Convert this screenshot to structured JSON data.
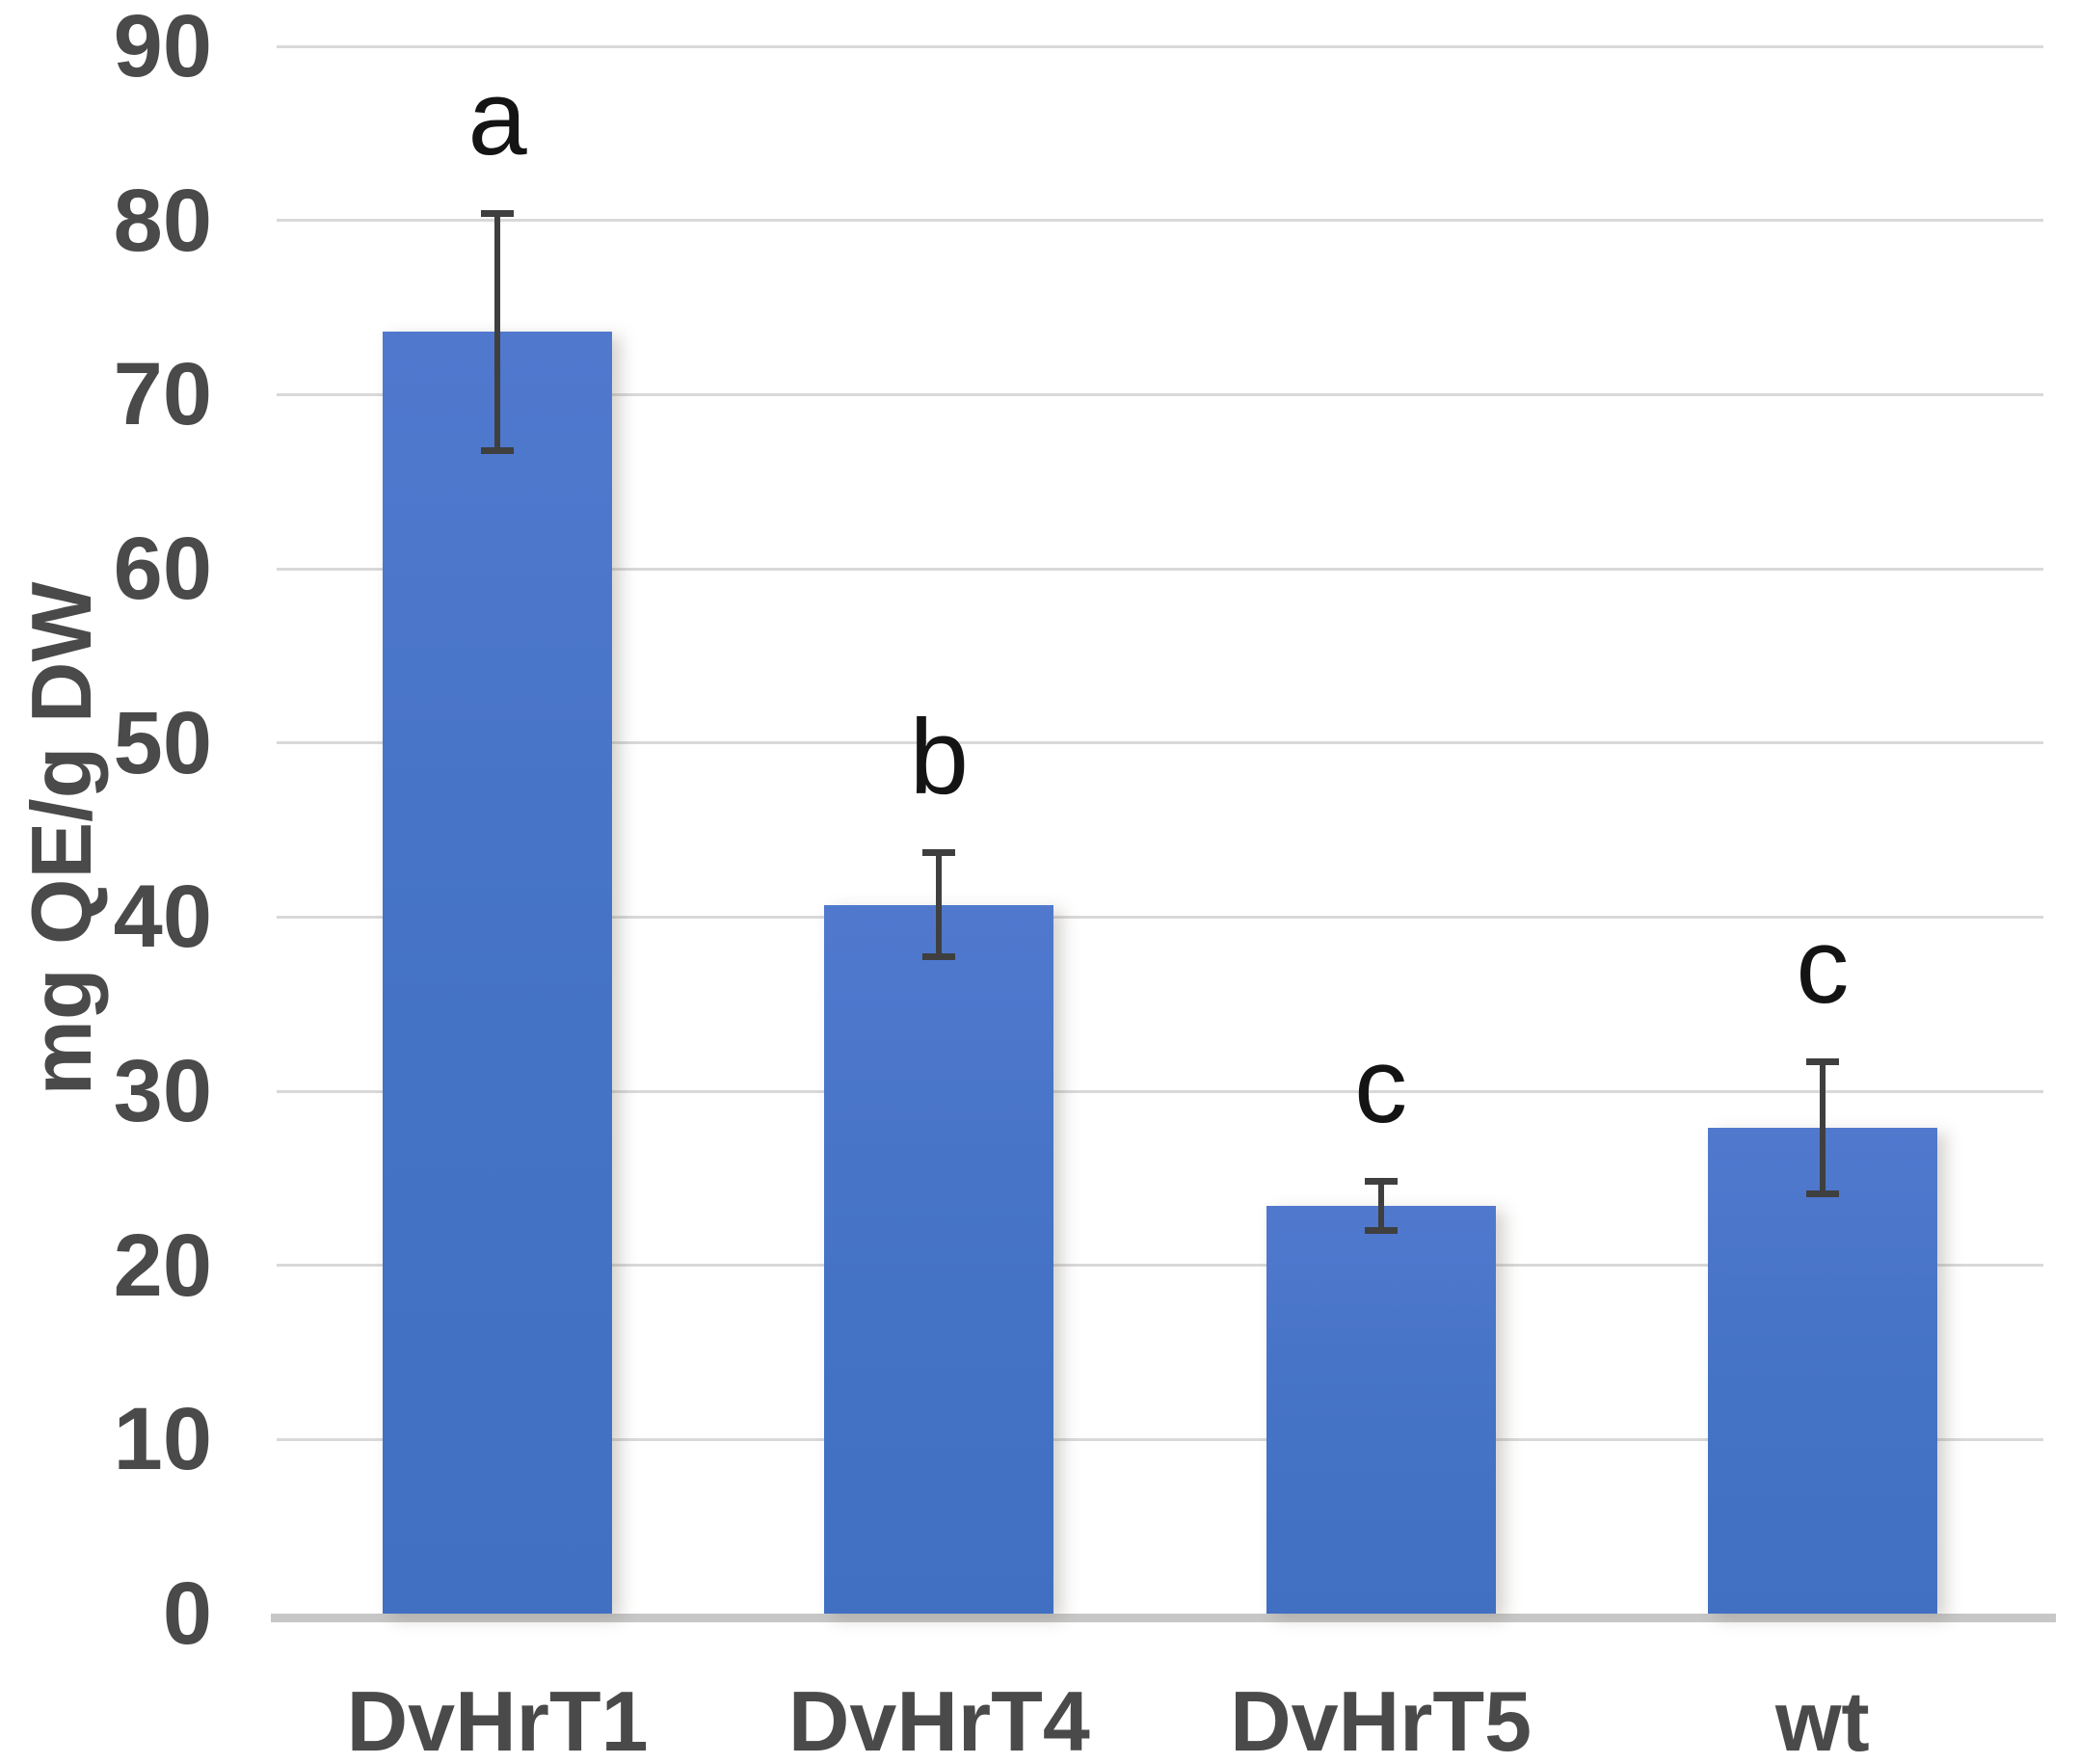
{
  "figure": {
    "background": "#ffffff"
  },
  "colors": {
    "bar_fill": "#4472c4",
    "bar_fill_top": "#5079ce",
    "gridline": "#d9d9d9",
    "axis_line": "#c7c7c7",
    "error_bar": "#3f3f3f",
    "axis_text": "#4a4a4a",
    "letter_text": "#141414"
  },
  "chart_data": {
    "type": "bar",
    "title": "",
    "xlabel": "",
    "ylabel": "mg QE/g DW",
    "categories": [
      "DvHrT1",
      "DvHrT4",
      "DvHrT5",
      "wt"
    ],
    "values": [
      73.6,
      40.7,
      23.4,
      27.9
    ],
    "error_bars": [
      7.0,
      3.2,
      1.6,
      4.0
    ],
    "sig_letters": [
      "a",
      "b",
      "c",
      "c"
    ],
    "ylim": [
      0,
      90
    ],
    "yticks": [
      0,
      10,
      20,
      30,
      40,
      50,
      60,
      70,
      80,
      90
    ],
    "grid": true,
    "legend": false
  }
}
